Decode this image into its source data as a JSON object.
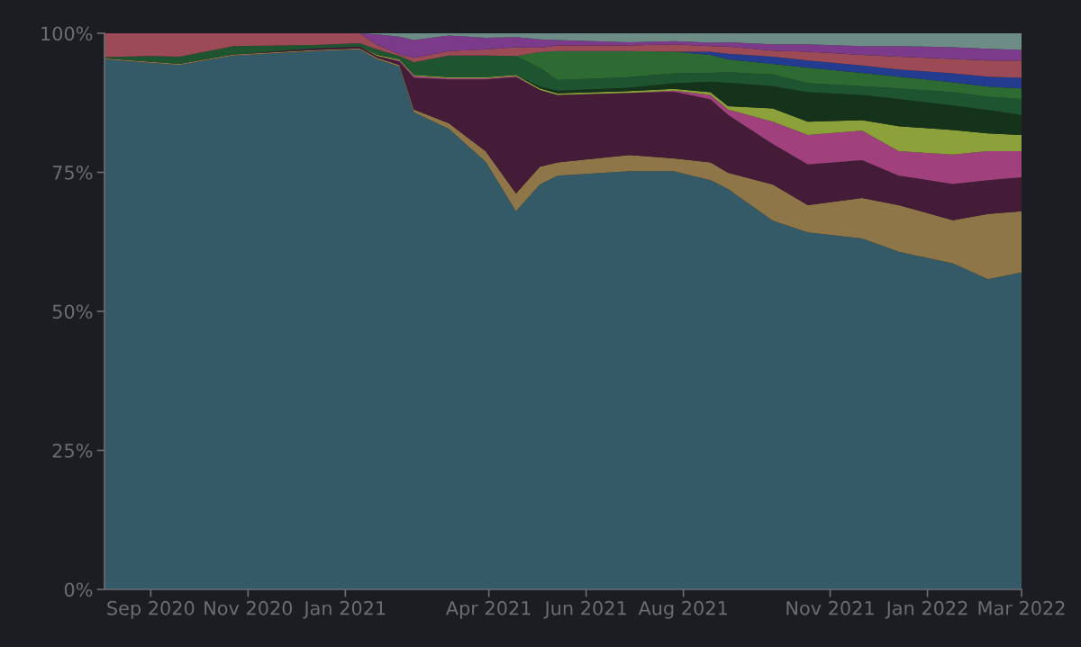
{
  "chart_data": {
    "type": "area",
    "stacked": true,
    "grid": false,
    "legend": false,
    "x": [
      "2020-08-03",
      "2020-08-31",
      "2020-09-19",
      "2020-10-23",
      "2020-12-13",
      "2021-01-10",
      "2021-01-21",
      "2021-02-04",
      "2021-02-13",
      "2021-03-07",
      "2021-03-30",
      "2021-04-18",
      "2021-05-03",
      "2021-05-14",
      "2021-06-28",
      "2021-07-26",
      "2021-08-18",
      "2021-08-29",
      "2021-09-26",
      "2021-10-18",
      "2021-11-21",
      "2021-12-14",
      "2022-01-17",
      "2022-02-08",
      "2022-03-01"
    ],
    "xlim": [
      "2020-08-03",
      "2022-03-01"
    ],
    "xticks": [
      {
        "value": "2020-09-01",
        "label": "Sep 2020"
      },
      {
        "value": "2020-11-01",
        "label": "Nov 2020"
      },
      {
        "value": "2021-01-01",
        "label": "Jan 2021"
      },
      {
        "value": "2021-04-01",
        "label": "Apr 2021"
      },
      {
        "value": "2021-06-01",
        "label": "Jun 2021"
      },
      {
        "value": "2021-08-01",
        "label": "Aug 2021"
      },
      {
        "value": "2021-11-01",
        "label": "Nov 2021"
      },
      {
        "value": "2022-01-01",
        "label": "Jan 2022"
      },
      {
        "value": "2022-03-01",
        "label": "Mar 2022"
      }
    ],
    "ylim": [
      0,
      100
    ],
    "yticks": [
      {
        "value": 0,
        "label": "0%"
      },
      {
        "value": 25,
        "label": "25%"
      },
      {
        "value": 50,
        "label": "50%"
      },
      {
        "value": 75,
        "label": "75%"
      },
      {
        "value": 100,
        "label": "100%"
      }
    ],
    "series": [
      {
        "color": "#335a66",
        "values": [
          95.3,
          94.7,
          94.3,
          96.0,
          96.8,
          97.1,
          95.3,
          94.0,
          85.8,
          82.8,
          76.9,
          68.0,
          72.8,
          74.4,
          75.2,
          75.2,
          73.6,
          72.0,
          66.3,
          64.2,
          63.1,
          60.7,
          58.6,
          55.8,
          57.0
        ]
      },
      {
        "color": "#8f7649",
        "values": [
          0.2,
          0.2,
          0.2,
          0.2,
          0.2,
          0.2,
          0.3,
          0.3,
          0.5,
          1.0,
          1.9,
          3.2,
          3.2,
          2.4,
          2.9,
          2.3,
          3.2,
          2.9,
          6.5,
          4.9,
          7.3,
          8.4,
          7.8,
          11.7,
          11.0
        ]
      },
      {
        "color": "#451c38",
        "values": [
          0,
          0,
          0,
          0,
          0.3,
          0.3,
          0.3,
          0.6,
          5.7,
          7.9,
          12.9,
          20.9,
          13.8,
          12.1,
          11.2,
          12.0,
          11.3,
          10.4,
          7.3,
          7.3,
          6.8,
          5.3,
          6.5,
          6.1,
          6.1
        ]
      },
      {
        "color": "#a0417e",
        "values": [
          0,
          0,
          0,
          0,
          0,
          0,
          0,
          0.2,
          0.3,
          0.2,
          0.2,
          0.2,
          0,
          0,
          0,
          0.2,
          0.8,
          1.0,
          4.0,
          5.3,
          5.3,
          4.4,
          5.3,
          5.2,
          4.7
        ]
      },
      {
        "color": "#8da13a",
        "values": [
          0,
          0,
          0,
          0,
          0,
          0,
          0.2,
          0.2,
          0.2,
          0.2,
          0.2,
          0.2,
          0.3,
          0.3,
          0.3,
          0.3,
          0.5,
          0.6,
          2.4,
          2.4,
          1.9,
          4.5,
          4.4,
          3.2,
          2.9
        ]
      },
      {
        "color": "#14331a",
        "values": [
          0,
          0,
          0,
          0,
          0,
          0,
          0,
          0,
          0,
          0,
          0,
          0,
          0.3,
          0.5,
          0.6,
          1.0,
          1.9,
          4.2,
          4.0,
          5.3,
          4.5,
          4.9,
          4.4,
          4.2,
          3.6
        ]
      },
      {
        "color": "#1e5530",
        "values": [
          0.2,
          1.0,
          1.3,
          1.5,
          0.6,
          0.6,
          1.0,
          0.6,
          2.3,
          3.9,
          3.9,
          3.4,
          3.4,
          1.9,
          1.9,
          1.8,
          1.6,
          1.9,
          2.1,
          1.6,
          1.6,
          1.9,
          2.4,
          2.4,
          2.9
        ]
      },
      {
        "color": "#2e6b33",
        "values": [
          0,
          0,
          0,
          0,
          0,
          0,
          0,
          0,
          0,
          0,
          0,
          0,
          2.8,
          5.2,
          4.7,
          3.9,
          3.2,
          2.3,
          1.9,
          2.8,
          2.4,
          2.1,
          1.8,
          1.8,
          1.9
        ]
      },
      {
        "color": "#243c8f",
        "values": [
          0,
          0,
          0,
          0,
          0,
          0,
          0,
          0,
          0,
          0,
          0,
          0,
          0,
          0,
          0,
          0,
          0.6,
          1.0,
          1.3,
          1.3,
          1.3,
          1.3,
          1.6,
          1.8,
          1.9
        ]
      },
      {
        "color": "#9c4a55",
        "values": [
          4.3,
          4.1,
          4.2,
          2.3,
          2.1,
          1.8,
          0.8,
          0.3,
          0.8,
          0.8,
          1.1,
          1.6,
          0.8,
          1.0,
          1.0,
          1.3,
          1.0,
          1.3,
          1.1,
          1.6,
          1.9,
          2.3,
          2.6,
          2.9,
          3.1
        ]
      },
      {
        "color": "#7b3a8a",
        "values": [
          0,
          0,
          0,
          0,
          0,
          0,
          1.9,
          3.2,
          3.2,
          2.8,
          2.1,
          1.8,
          1.5,
          1.0,
          0.6,
          0.6,
          0.6,
          0.8,
          1.1,
          1.3,
          1.6,
          1.9,
          2.1,
          2.1,
          1.9
        ]
      },
      {
        "color": "#6e8c86",
        "values": [
          0,
          0,
          0,
          0,
          0,
          0,
          0.2,
          0.6,
          1.2,
          0.4,
          0.8,
          0.7,
          1.1,
          1.2,
          1.6,
          1.4,
          1.7,
          1.6,
          2.0,
          2.0,
          2.3,
          2.3,
          2.5,
          2.8,
          3.0
        ]
      }
    ]
  }
}
